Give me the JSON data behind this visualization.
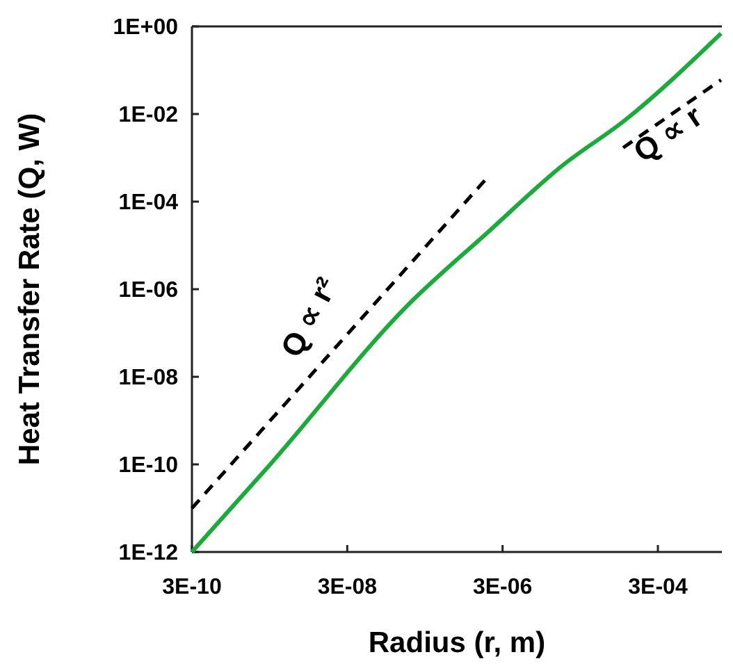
{
  "chart_data": {
    "type": "line",
    "xlabel": "Radius (r, m)",
    "ylabel": "Heat Transfer Rate (Q, W)",
    "log": "xy",
    "grid": false,
    "marker": "none",
    "xlim": [
      3e-10,
      0.002
    ],
    "ylim": [
      1e-12,
      1
    ],
    "xticks": [
      {
        "value": 3e-10,
        "label": "3E-10"
      },
      {
        "value": 3e-08,
        "label": "3E-08"
      },
      {
        "value": 3e-06,
        "label": "3E-06"
      },
      {
        "value": 0.0003,
        "label": "3E-04"
      }
    ],
    "yticks": [
      {
        "value": 1e-12,
        "label": "1E-12"
      },
      {
        "value": 1e-10,
        "label": "1E-10"
      },
      {
        "value": 1e-08,
        "label": "1E-08"
      },
      {
        "value": 1e-06,
        "label": "1E-06"
      },
      {
        "value": 0.0001,
        "label": "1E-04"
      },
      {
        "value": 0.01,
        "label": "1E-02"
      },
      {
        "value": 1,
        "label": "1E+00"
      }
    ],
    "series": [
      {
        "color": "#1aab3a",
        "line_style": "solid",
        "x": [
          3e-10,
          3.2e-09,
          1.8e-07,
          2e-06,
          1.74e-05,
          0.000115,
          0.00195
        ],
        "values": [
          1e-12,
          1.1e-10,
          4.3e-07,
          2.1e-05,
          0.00065,
          0.0074,
          0.69
        ]
      },
      {
        "color": "#000000",
        "line_style": "dashed",
        "x": [
          3e-10,
          1.9e-06
        ],
        "values": [
          1e-11,
          0.00035
        ]
      },
      {
        "color": "#000000",
        "line_style": "dashed",
        "x": [
          0.000107,
          0.00195
        ],
        "values": [
          0.0017,
          0.06
        ]
      }
    ],
    "annotations": [
      "Q ∝ r²",
      "Q ∝ r"
    ]
  }
}
